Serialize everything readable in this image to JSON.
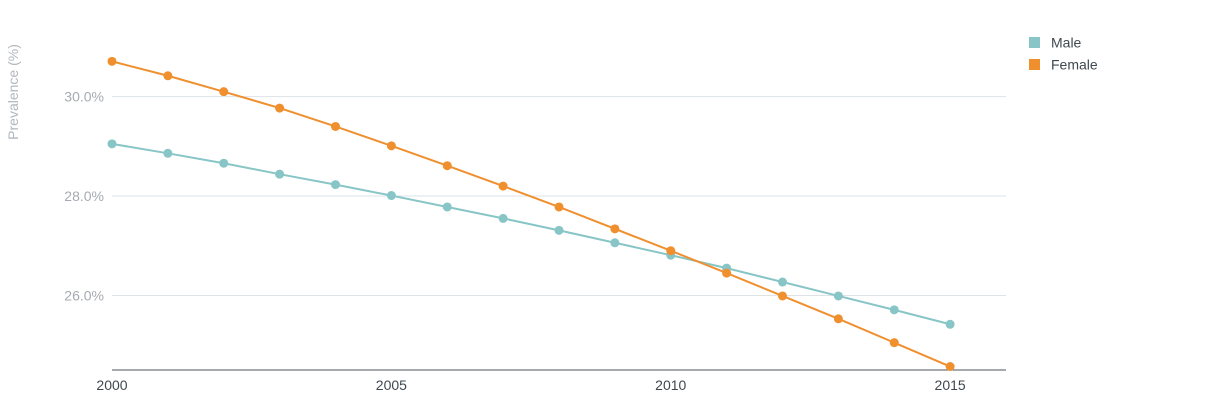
{
  "chart_data": {
    "type": "line",
    "title": "",
    "xlabel": "",
    "ylabel": "Prevalence (%)",
    "x": [
      2000,
      2001,
      2002,
      2003,
      2004,
      2005,
      2006,
      2007,
      2008,
      2009,
      2010,
      2011,
      2012,
      2013,
      2014,
      2015
    ],
    "xlim": [
      2000,
      2016
    ],
    "ylim": [
      24.5,
      31.2
    ],
    "x_ticks": [
      {
        "value": 2000,
        "label": "2000"
      },
      {
        "value": 2005,
        "label": "2005"
      },
      {
        "value": 2010,
        "label": "2010"
      },
      {
        "value": 2015,
        "label": "2015"
      }
    ],
    "y_ticks": [
      {
        "value": 26,
        "label": "26.0%"
      },
      {
        "value": 28,
        "label": "28.0%"
      },
      {
        "value": 30,
        "label": "30.0%"
      }
    ],
    "grid": true,
    "legend_position": "top-right",
    "series": [
      {
        "name": "Male",
        "color": "#88c5c7",
        "values": [
          29.05,
          28.86,
          28.66,
          28.44,
          28.23,
          28.01,
          27.78,
          27.55,
          27.31,
          27.06,
          26.81,
          26.55,
          26.27,
          25.99,
          25.71,
          25.42
        ]
      },
      {
        "name": "Female",
        "color": "#f08f2e",
        "values": [
          30.71,
          30.42,
          30.1,
          29.77,
          29.4,
          29.01,
          28.61,
          28.2,
          27.78,
          27.34,
          26.9,
          26.45,
          25.99,
          25.53,
          25.05,
          24.57
        ]
      }
    ]
  }
}
